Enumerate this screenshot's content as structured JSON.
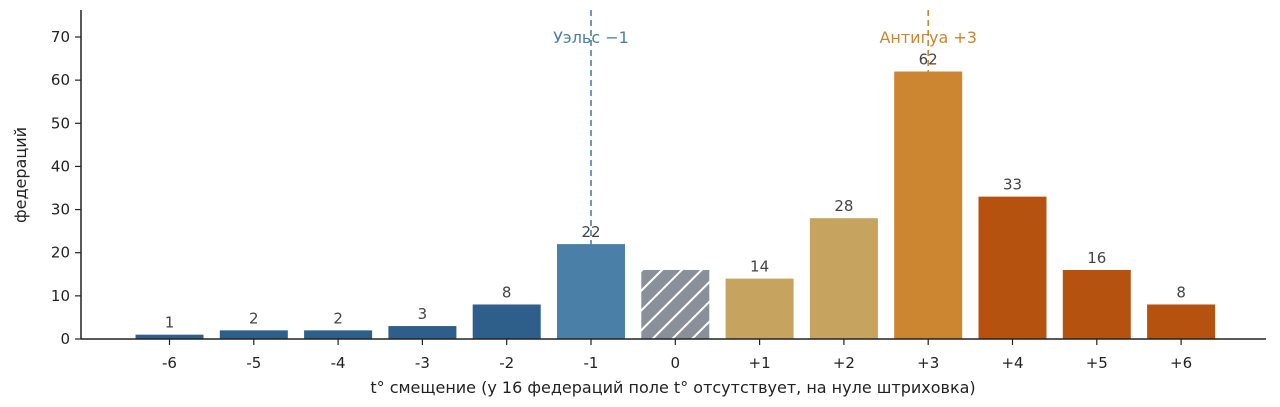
{
  "chart_data": {
    "type": "bar",
    "xlabel": "t° смещение (у 16 федераций поле t° отсутствует, на нуле штриховка)",
    "ylabel": "федераций",
    "ylim": [
      0,
      76
    ],
    "yticks": [
      0,
      10,
      20,
      30,
      40,
      50,
      60,
      70
    ],
    "grid": false,
    "categories": [
      "-6",
      "-5",
      "-4",
      "-3",
      "-2",
      "-1",
      "0",
      "+1",
      "+2",
      "+3",
      "+4",
      "+5",
      "+6"
    ],
    "values": [
      1,
      2,
      2,
      3,
      8,
      22,
      16,
      14,
      28,
      62,
      33,
      16,
      8
    ],
    "value_labels": [
      "1",
      "2",
      "2",
      "3",
      "8",
      "22",
      "",
      "14",
      "28",
      "62",
      "33",
      "16",
      "8"
    ],
    "bar_colors": [
      "#2e5f8a",
      "#2e5f8a",
      "#2e5f8a",
      "#2e5f8a",
      "#2e5f8a",
      "#4a80a8",
      "#8a9099",
      "#c6a35e",
      "#c6a35e",
      "#cc8530",
      "#b5520f",
      "#b5520f",
      "#b5520f"
    ],
    "hatched": [
      false,
      false,
      false,
      false,
      false,
      false,
      true,
      false,
      false,
      false,
      false,
      false,
      false
    ],
    "reference_lines": [
      {
        "x": "-1",
        "label": "Уэльс −1",
        "color": "#4a80a8"
      },
      {
        "x": "+3",
        "label": "Антигуа +3",
        "color": "#cc8530"
      }
    ]
  }
}
